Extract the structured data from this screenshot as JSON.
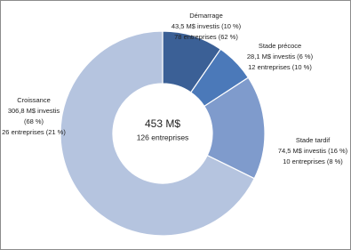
{
  "chart_data": {
    "type": "donut",
    "center_title": "453 M$",
    "center_subtitle": "126 entreprises",
    "categories": [
      "Démarrage",
      "Stade précoce",
      "Stade tardif",
      "Croissance"
    ],
    "values": [
      43.5,
      28.1,
      74.5,
      306.8
    ],
    "value_labels": [
      [
        "43,5 M$ investis (10 %)",
        "78 entreprises (62 %)"
      ],
      [
        "28,1 M$ investis (6 %)",
        "12 entreprises (10 %)"
      ],
      [
        "74,5 M$ investis (16 %)",
        "10 entreprises (8 %)"
      ],
      [
        "306,8 M$ investis",
        "(68 %)",
        "26 entreprises (21 %)"
      ]
    ],
    "colors": [
      "#3b6096",
      "#4b79b9",
      "#7f9bcc",
      "#b5c4df"
    ]
  }
}
